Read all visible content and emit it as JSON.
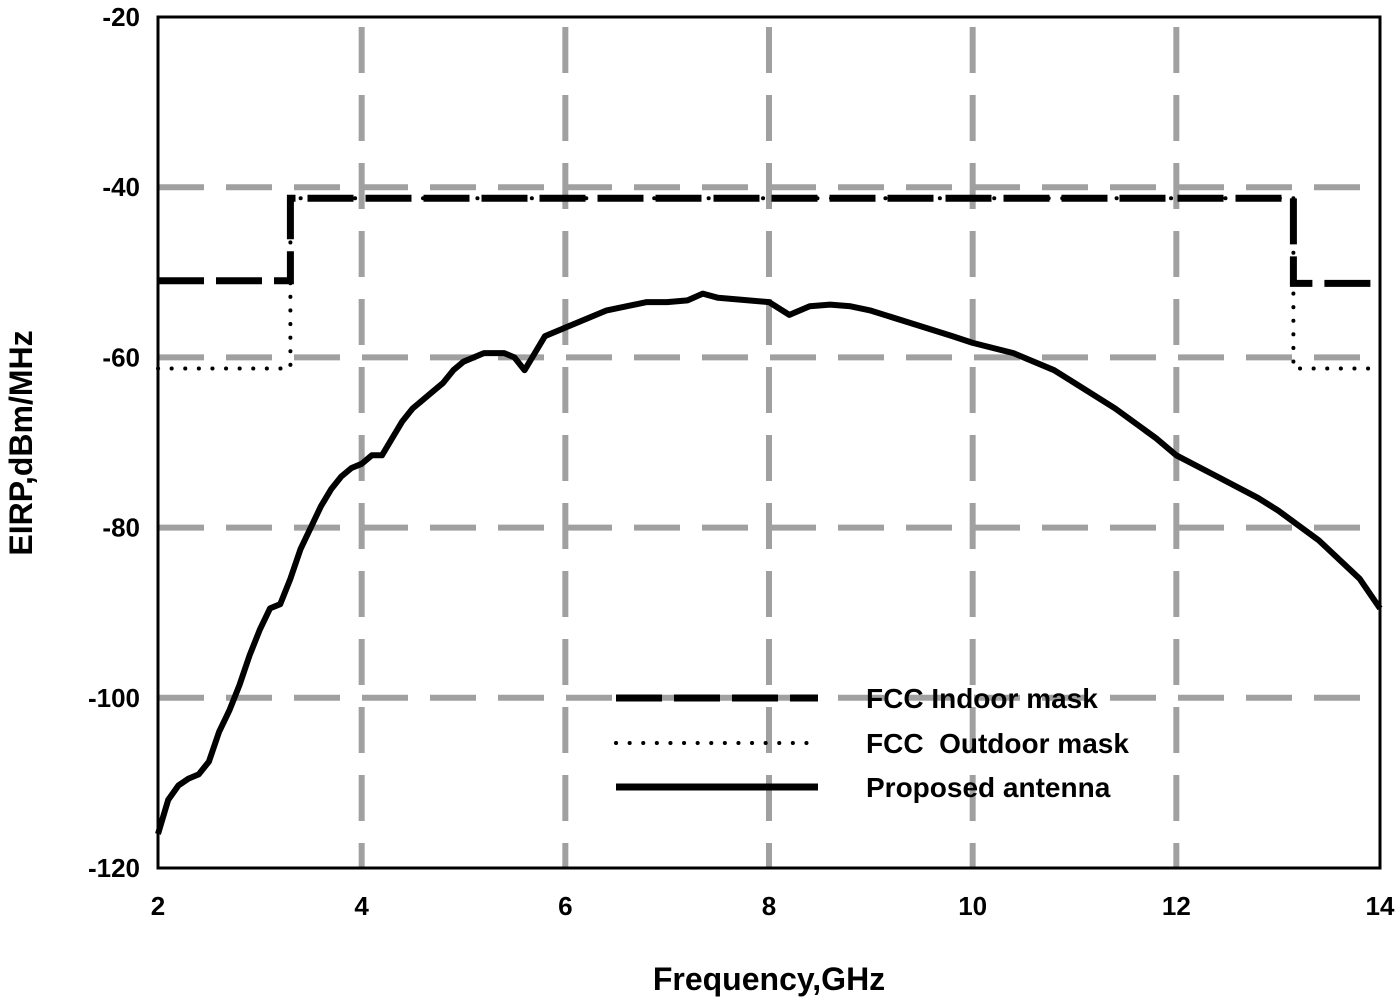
{
  "chart_data": {
    "type": "line",
    "title": "",
    "xlabel": "Frequency,GHz",
    "ylabel": "EIRP,dBm/MHz",
    "xlim": [
      2,
      14
    ],
    "ylim": [
      -120,
      -20
    ],
    "xticks": [
      2,
      4,
      6,
      8,
      10,
      12,
      14
    ],
    "yticks": [
      -20,
      -40,
      -60,
      -80,
      -100,
      -120
    ],
    "grid": true,
    "grid_style": "dashed gray",
    "legend_position": "lower center",
    "series": [
      {
        "name": "FCC Indoor mask",
        "style": "dashed",
        "x": [
          2,
          3.3,
          3.3,
          13.15,
          13.15,
          14
        ],
        "y": [
          -51,
          -51,
          -41.3,
          -41.3,
          -51.3,
          -51.3
        ]
      },
      {
        "name": "FCC  Outdoor mask",
        "style": "dotted",
        "x": [
          2,
          3.3,
          3.3,
          13.15,
          13.15,
          14
        ],
        "y": [
          -61.3,
          -61.3,
          -41.3,
          -41.3,
          -61.3,
          -61.3
        ]
      },
      {
        "name": "Proposed antenna",
        "style": "solid",
        "x": [
          2.0,
          2.1,
          2.2,
          2.3,
          2.4,
          2.5,
          2.6,
          2.7,
          2.8,
          2.9,
          3.0,
          3.1,
          3.2,
          3.3,
          3.4,
          3.5,
          3.6,
          3.7,
          3.8,
          3.9,
          4.0,
          4.1,
          4.2,
          4.3,
          4.4,
          4.5,
          4.6,
          4.7,
          4.8,
          4.9,
          5.0,
          5.2,
          5.4,
          5.5,
          5.6,
          5.7,
          5.8,
          6.0,
          6.2,
          6.4,
          6.6,
          6.8,
          7.0,
          7.2,
          7.35,
          7.5,
          7.8,
          8.0,
          8.2,
          8.4,
          8.6,
          8.8,
          9.0,
          9.4,
          9.8,
          10.0,
          10.4,
          10.8,
          11.0,
          11.4,
          11.8,
          12.0,
          12.4,
          12.8,
          13.0,
          13.4,
          13.8,
          14.0
        ],
        "y": [
          -116,
          -112,
          -110.3,
          -109.5,
          -109,
          -107.5,
          -104,
          -101.5,
          -98.5,
          -95,
          -92,
          -89.5,
          -89,
          -86,
          -82.5,
          -80,
          -77.5,
          -75.5,
          -74,
          -73,
          -72.5,
          -71.5,
          -71.5,
          -69.5,
          -67.5,
          -66,
          -65,
          -64,
          -63,
          -61.5,
          -60.5,
          -59.5,
          -59.5,
          -60,
          -61.5,
          -59.5,
          -57.5,
          -56.5,
          -55.5,
          -54.5,
          -54,
          -53.5,
          -53.5,
          -53.3,
          -52.5,
          -53,
          -53.3,
          -53.5,
          -55,
          -54,
          -53.8,
          -54,
          -54.5,
          -56,
          -57.5,
          -58.3,
          -59.5,
          -61.5,
          -63,
          -66,
          -69.5,
          -71.5,
          -74,
          -76.5,
          -78,
          -81.5,
          -86,
          -89.5
        ]
      }
    ]
  },
  "legend": {
    "items": [
      {
        "label": "FCC Indoor mask",
        "style": "dashed"
      },
      {
        "label": "FCC  Outdoor mask",
        "style": "dotted"
      },
      {
        "label": "Proposed antenna",
        "style": "solid"
      }
    ]
  },
  "colors": {
    "line": "#000000",
    "grid": "#a0a0a0",
    "background": "#ffffff"
  }
}
